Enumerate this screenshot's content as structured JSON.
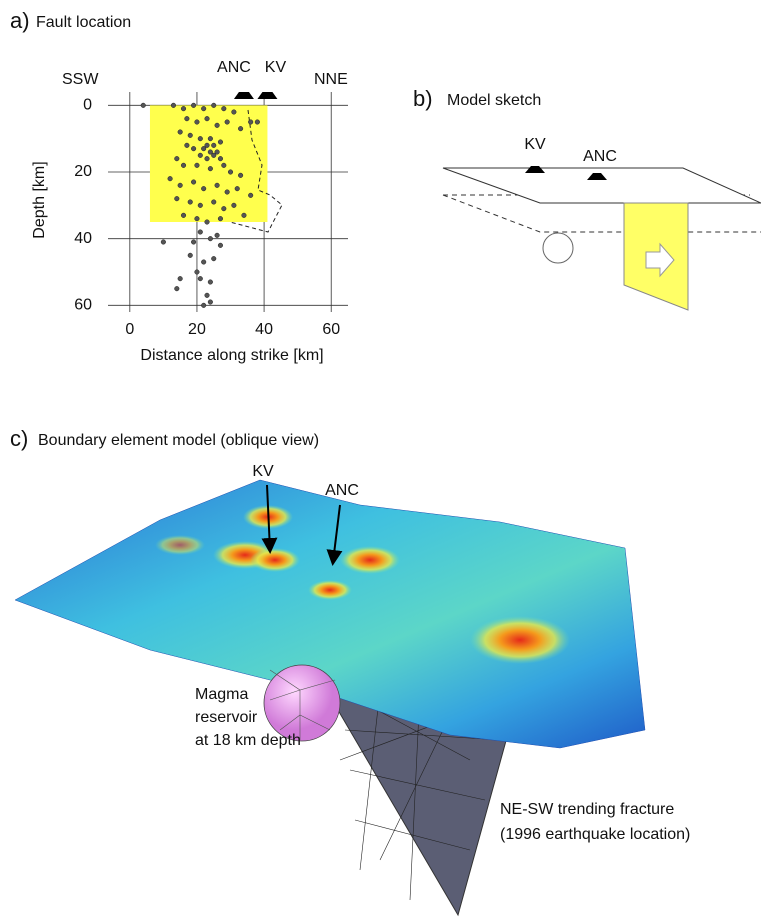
{
  "chart_data": {
    "type": "scatter",
    "panel_label": "a)",
    "title": "Fault location",
    "xlabel": "Distance along strike [km]",
    "ylabel": "Depth [km]",
    "x": [
      4,
      13,
      16,
      19,
      22,
      25,
      28,
      31,
      36,
      38,
      17,
      20,
      23,
      26,
      29,
      33,
      15,
      18,
      21,
      24,
      25,
      27,
      23,
      22,
      24,
      26,
      25,
      23,
      27,
      21,
      19,
      17,
      14,
      16,
      20,
      24,
      28,
      30,
      33,
      12,
      15,
      19,
      22,
      26,
      29,
      32,
      36,
      14,
      18,
      21,
      25,
      28,
      31,
      16,
      20,
      23,
      27,
      34,
      21,
      24,
      26,
      19,
      27,
      10,
      18,
      22,
      25,
      20,
      15,
      21,
      24,
      14,
      23,
      22,
      24
    ],
    "values": [
      0,
      0,
      1,
      0,
      1,
      0,
      1,
      2,
      5,
      5,
      4,
      5,
      4,
      6,
      5,
      7,
      8,
      9,
      10,
      10,
      12,
      11,
      12,
      13,
      14,
      14,
      15,
      16,
      16,
      15,
      13,
      12,
      16,
      18,
      18,
      19,
      18,
      20,
      21,
      22,
      24,
      23,
      25,
      24,
      26,
      25,
      27,
      28,
      29,
      30,
      29,
      31,
      30,
      33,
      34,
      35,
      34,
      33,
      38,
      40,
      39,
      41,
      42,
      41,
      45,
      47,
      46,
      50,
      52,
      52,
      53,
      55,
      57,
      60,
      59
    ],
    "color": "#555555",
    "xlim": [
      -6.5,
      65
    ],
    "ylim": [
      62,
      -4
    ],
    "xticks": [
      0,
      20,
      40,
      60
    ],
    "yticks": [
      0,
      20,
      40,
      60
    ],
    "grid": true,
    "fault_patch": {
      "x": [
        6,
        41
      ],
      "y": [
        0,
        35
      ],
      "color": "#ffff4d"
    },
    "stations": [
      {
        "name": "ANC",
        "x": 34
      },
      {
        "name": "KV",
        "x": 41
      }
    ],
    "direction_left": "SSW",
    "direction_right": "NNE"
  },
  "model_sketch": {
    "label": "b)",
    "title": "Model sketch",
    "stations": [
      "KV",
      "ANC"
    ]
  },
  "bem_model": {
    "label": "c)",
    "title": "Boundary element model (oblique view)",
    "arrows": [
      "KV",
      "ANC"
    ],
    "reservoir_label": [
      "Magma",
      "reservoir",
      "at 18 km depth"
    ],
    "fracture_label": [
      "NE-SW trending fracture",
      "(1996 earthquake location)"
    ]
  }
}
